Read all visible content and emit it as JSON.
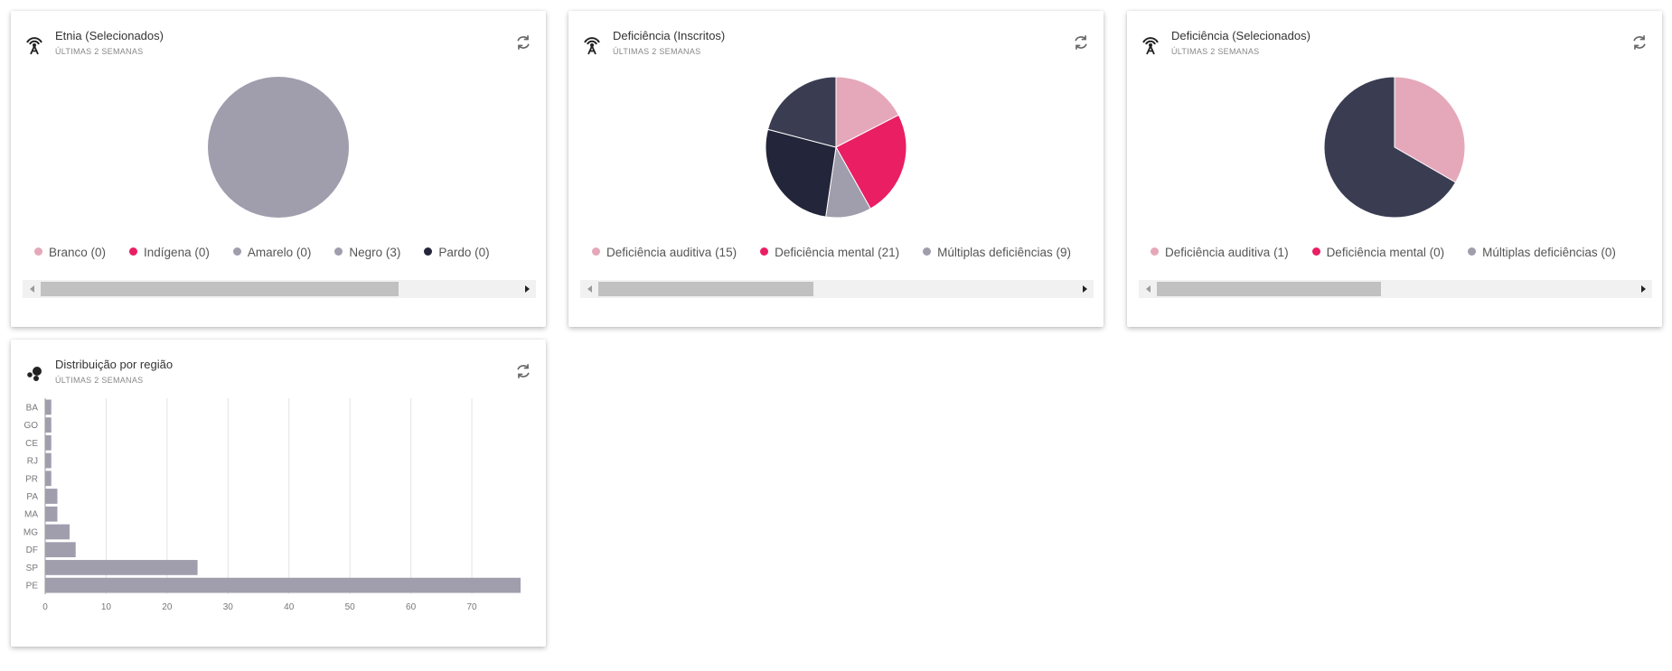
{
  "colors": {
    "pink_light": "#E5A8BA",
    "pink": "#E91E63",
    "gray": "#A09DAD",
    "navy_dark": "#23263A",
    "navy": "#3A3D52",
    "bar": "#A09DAD"
  },
  "cards": [
    {
      "title": "Etnia (Selecionados)",
      "subtitle": "ÚLTIMAS 2 SEMANAS",
      "icon": "antenna-icon",
      "chart_data": {
        "type": "pie",
        "title": "Etnia (Selecionados)",
        "slices": [
          {
            "name": "Branco",
            "value": 0,
            "color": "#E5A8BA",
            "legend": "Branco (0)"
          },
          {
            "name": "Indígena",
            "value": 0,
            "color": "#E91E63",
            "legend": "Indígena (0)"
          },
          {
            "name": "Amarelo",
            "value": 0,
            "color": "#A09DAD",
            "legend": "Amarelo (0)"
          },
          {
            "name": "Negro",
            "value": 3,
            "color": "#A09DAD",
            "legend": "Negro (3)"
          },
          {
            "name": "Pardo",
            "value": 0,
            "color": "#23263A",
            "legend": "Pardo (0)"
          }
        ]
      },
      "scroll_thumb_fraction": 0.75,
      "scroll_thumb_start": 0
    },
    {
      "title": "Deficiência (Inscritos)",
      "subtitle": "ÚLTIMAS 2 SEMANAS",
      "icon": "antenna-icon",
      "chart_data": {
        "type": "pie",
        "title": "Deficiência (Inscritos)",
        "slices": [
          {
            "name": "Deficiência auditiva",
            "value": 15,
            "color": "#E5A8BA",
            "legend": "Deficiência auditiva (15)"
          },
          {
            "name": "Deficiência mental",
            "value": 21,
            "color": "#E91E63",
            "legend": "Deficiência mental (21)"
          },
          {
            "name": "Múltiplas deficiências",
            "value": 9,
            "color": "#A09DAD",
            "legend": "Múltiplas deficiências (9)"
          },
          {
            "name": "",
            "value": 23,
            "color": "#23263A",
            "legend": ""
          },
          {
            "name": "",
            "value": 18,
            "color": "#3A3D52",
            "legend": ""
          }
        ]
      },
      "scroll_thumb_fraction": 0.45,
      "scroll_thumb_start": 0
    },
    {
      "title": "Deficiência (Selecionados)",
      "subtitle": "ÚLTIMAS 2 SEMANAS",
      "icon": "antenna-icon",
      "chart_data": {
        "type": "pie",
        "title": "Deficiência (Selecionados)",
        "slices": [
          {
            "name": "Deficiência auditiva",
            "value": 1,
            "color": "#E5A8BA",
            "legend": "Deficiência auditiva (1)"
          },
          {
            "name": "Deficiência mental",
            "value": 0,
            "color": "#E91E63",
            "legend": "Deficiência mental (0)"
          },
          {
            "name": "Múltiplas deficiências",
            "value": 0,
            "color": "#A09DAD",
            "legend": "Múltiplas deficiências (0)"
          },
          {
            "name": "",
            "value": 0,
            "color": "#23263A",
            "legend": ""
          },
          {
            "name": "",
            "value": 2,
            "color": "#3A3D52",
            "legend": ""
          }
        ]
      },
      "scroll_thumb_fraction": 0.47,
      "scroll_thumb_start": 0
    },
    {
      "title": "Distribuição por região",
      "subtitle": "ÚLTIMAS 2 SEMANAS",
      "icon": "bubbles-icon",
      "chart_data": {
        "type": "bar",
        "orientation": "horizontal",
        "title": "Distribuição por região",
        "categories": [
          "BA",
          "GO",
          "CE",
          "RJ",
          "PR",
          "PA",
          "MA",
          "MG",
          "DF",
          "SP",
          "PE"
        ],
        "values": [
          1,
          1,
          1,
          1,
          1,
          2,
          2,
          4,
          5,
          25,
          78
        ],
        "xlim": [
          0,
          78
        ],
        "xticks": [
          0,
          10,
          20,
          30,
          40,
          50,
          60,
          70
        ],
        "grid": true
      }
    }
  ]
}
